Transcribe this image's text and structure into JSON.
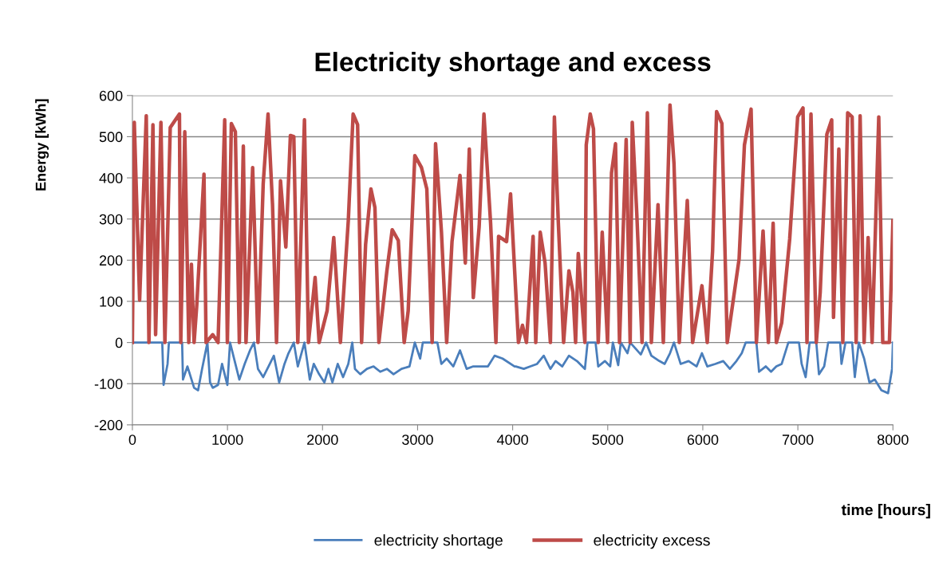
{
  "chart_data": {
    "type": "line",
    "title": "Electricity shortage and excess",
    "xlabel": "time [hours]",
    "ylabel": "Energy [kWh]",
    "xlim": [
      0,
      8000
    ],
    "xticks": [
      0,
      1000,
      2000,
      3000,
      4000,
      5000,
      6000,
      7000,
      8000
    ],
    "ylim": [
      -200,
      600
    ],
    "yticks": [
      -200,
      -100,
      0,
      100,
      200,
      300,
      400,
      500,
      600
    ],
    "grid": "y",
    "legend": "bottom",
    "marker": "none",
    "line_style": "solid",
    "series": [
      {
        "name": "electricity shortage",
        "color": "#4a7ebb",
        "x": [
          0,
          314,
          328,
          370,
          384,
          523,
          532,
          579,
          649,
          691,
          733,
          789,
          817,
          845,
          901,
          943,
          999,
          1027,
          1125,
          1181,
          1237,
          1279,
          1321,
          1376,
          1432,
          1488,
          1544,
          1600,
          1642,
          1698,
          1740,
          1810,
          1866,
          1908,
          1964,
          2020,
          2062,
          2104,
          2160,
          2216,
          2271,
          2313,
          2341,
          2397,
          2467,
          2537,
          2607,
          2677,
          2747,
          2831,
          2915,
          2971,
          3027,
          3055,
          3208,
          3250,
          3306,
          3376,
          3446,
          3516,
          3586,
          3670,
          3740,
          3810,
          3894,
          4020,
          4033,
          4117,
          4187,
          4257,
          4327,
          4397,
          4452,
          4522,
          4592,
          4676,
          4760,
          4788,
          4872,
          4900,
          4970,
          5026,
          5054,
          5110,
          5138,
          5208,
          5236,
          5348,
          5403,
          5459,
          5543,
          5599,
          5655,
          5697,
          5767,
          5851,
          5935,
          5991,
          6047,
          6131,
          6215,
          6285,
          6354,
          6410,
          6452,
          6564,
          6592,
          6662,
          6718,
          6774,
          6830,
          6900,
          7012,
          7040,
          7082,
          7124,
          7194,
          7222,
          7277,
          7319,
          7445,
          7459,
          7501,
          7571,
          7599,
          7641,
          7697,
          7753,
          7809,
          7879,
          7949,
          7991,
          8000
        ],
        "values": [
          0,
          0,
          -103,
          -52,
          0,
          0,
          -90,
          -58,
          -110,
          -116,
          -64,
          0,
          -97,
          -110,
          -103,
          -52,
          -103,
          0,
          -90,
          -52,
          -19,
          0,
          -64,
          -84,
          -58,
          -32,
          -97,
          -52,
          -26,
          0,
          -58,
          0,
          -90,
          -52,
          -77,
          -97,
          -64,
          -97,
          -52,
          -84,
          -52,
          0,
          -64,
          -77,
          -64,
          -58,
          -71,
          -64,
          -77,
          -64,
          -58,
          0,
          -39,
          0,
          0,
          -52,
          -39,
          -58,
          -19,
          -64,
          -58,
          -58,
          -58,
          -32,
          -39,
          -58,
          -58,
          -64,
          -58,
          -52,
          -32,
          -64,
          -45,
          -58,
          -32,
          -45,
          -64,
          0,
          0,
          -58,
          -45,
          -58,
          0,
          -55,
          0,
          -26,
          0,
          -29,
          0,
          -32,
          -45,
          -52,
          -26,
          0,
          -52,
          -45,
          -58,
          -26,
          -58,
          -52,
          -45,
          -64,
          -45,
          -26,
          0,
          0,
          -71,
          -58,
          -71,
          -58,
          -52,
          0,
          0,
          -52,
          -84,
          0,
          0,
          -77,
          -58,
          0,
          0,
          -52,
          0,
          0,
          -84,
          0,
          -39,
          -97,
          -90,
          -116,
          -123,
          -64,
          0
        ]
      },
      {
        "name": "electricity excess",
        "color": "#be4b48",
        "x": [
          0,
          20,
          76,
          146,
          174,
          216,
          244,
          300,
          342,
          398,
          453,
          495,
          509,
          551,
          593,
          621,
          649,
          677,
          753,
          775,
          845,
          901,
          971,
          999,
          1041,
          1083,
          1125,
          1167,
          1195,
          1265,
          1321,
          1376,
          1427,
          1474,
          1516,
          1558,
          1614,
          1662,
          1698,
          1740,
          1810,
          1852,
          1922,
          1964,
          2048,
          2118,
          2188,
          2271,
          2322,
          2369,
          2411,
          2453,
          2509,
          2551,
          2593,
          2677,
          2733,
          2797,
          2859,
          2901,
          2971,
          3041,
          3097,
          3153,
          3189,
          3251,
          3306,
          3362,
          3446,
          3502,
          3544,
          3586,
          3648,
          3698,
          3768,
          3824,
          3852,
          3936,
          3978,
          4061,
          4103,
          4145,
          4215,
          4243,
          4290,
          4341,
          4397,
          4439,
          4480,
          4536,
          4592,
          4634,
          4662,
          4690,
          4760,
          4774,
          4816,
          4850,
          4900,
          4942,
          4998,
          5040,
          5082,
          5124,
          5194,
          5236,
          5258,
          5306,
          5361,
          5417,
          5459,
          5529,
          5585,
          5655,
          5697,
          5753,
          5837,
          5893,
          5991,
          6047,
          6103,
          6145,
          6201,
          6257,
          6382,
          6438,
          6508,
          6564,
          6634,
          6690,
          6740,
          6774,
          6830,
          6914,
          6998,
          7054,
          7096,
          7138,
          7194,
          7235,
          7305,
          7356,
          7375,
          7431,
          7473,
          7524,
          7571,
          7613,
          7655,
          7697,
          7739,
          7781,
          7851,
          7893,
          7963,
          8000
        ],
        "values": [
          0,
          535,
          103,
          551,
          0,
          529,
          19,
          535,
          0,
          522,
          541,
          555,
          0,
          512,
          0,
          190,
          0,
          90,
          409,
          0,
          19,
          0,
          541,
          0,
          532,
          512,
          0,
          477,
          0,
          425,
          0,
          386,
          555,
          335,
          0,
          393,
          232,
          503,
          500,
          0,
          541,
          0,
          158,
          0,
          77,
          255,
          0,
          296,
          555,
          529,
          0,
          238,
          373,
          328,
          0,
          174,
          274,
          248,
          0,
          77,
          454,
          425,
          373,
          0,
          483,
          268,
          0,
          245,
          406,
          193,
          470,
          109,
          283,
          555,
          290,
          0,
          258,
          245,
          361,
          0,
          42,
          0,
          258,
          0,
          268,
          193,
          0,
          548,
          293,
          0,
          174,
          122,
          0,
          216,
          0,
          480,
          555,
          519,
          0,
          268,
          0,
          412,
          483,
          0,
          493,
          0,
          535,
          312,
          0,
          558,
          0,
          335,
          0,
          577,
          435,
          0,
          345,
          0,
          138,
          0,
          222,
          561,
          532,
          0,
          203,
          480,
          567,
          0,
          271,
          0,
          290,
          0,
          48,
          251,
          548,
          570,
          0,
          555,
          0,
          122,
          506,
          541,
          61,
          470,
          0,
          558,
          548,
          0,
          551,
          0,
          255,
          0,
          548,
          0,
          0,
          296
        ]
      }
    ]
  }
}
